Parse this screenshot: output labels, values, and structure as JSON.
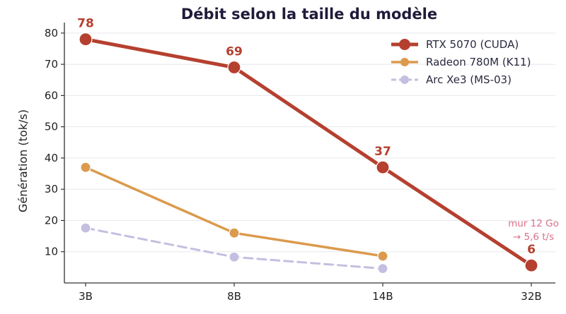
{
  "chart_data": {
    "type": "line",
    "title": "Débit selon la taille du modèle",
    "xlabel": "",
    "ylabel": "Génération (tok/s)",
    "categories": [
      "3B",
      "8B",
      "14B",
      "32B"
    ],
    "ylim": [
      0,
      82
    ],
    "yticks": [
      10,
      20,
      30,
      40,
      50,
      60,
      70,
      80
    ],
    "grid": "horizontal",
    "legend_position": "top-right",
    "series": [
      {
        "name": "RTX 5070 (CUDA)",
        "color": "#b5402f",
        "style": "solid",
        "values": [
          78,
          69,
          37,
          5.6
        ],
        "data_labels": [
          "78",
          "69",
          "37",
          "6"
        ]
      },
      {
        "name": "Radeon 780M (K11)",
        "color": "#db9a4d",
        "style": "solid",
        "values": [
          37,
          16,
          8.6,
          null
        ]
      },
      {
        "name": "Arc Xe3 (MS-03)",
        "color": "#c4bfe0",
        "style": "dashed",
        "values": [
          17.6,
          8.3,
          4.6,
          null
        ]
      }
    ],
    "annotation": {
      "lines": [
        "mur 12 Go",
        "→ 5,6 t/s"
      ],
      "category": "32B",
      "color": "#d9708a"
    }
  }
}
